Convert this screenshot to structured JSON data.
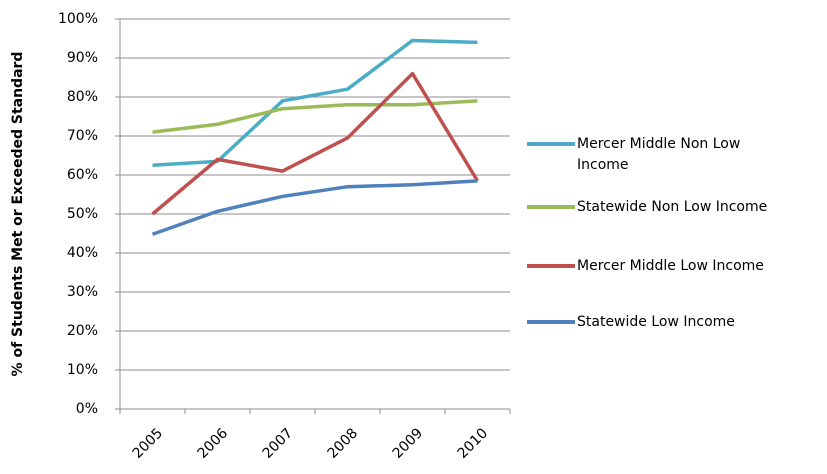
{
  "chart_data": {
    "type": "line",
    "y_label": "% of Students Met or Exceeded Standard",
    "categories": [
      "2005",
      "2006",
      "2007",
      "2008",
      "2009",
      "2010"
    ],
    "series": [
      {
        "name": "Mercer Middle Non Low Income",
        "color": "#4bacc6",
        "values": [
          62.5,
          63.5,
          79,
          82,
          94.5,
          94
        ]
      },
      {
        "name": "Statewide Non Low Income",
        "color": "#9bbb59",
        "values": [
          71,
          73,
          77,
          78,
          78,
          79
        ]
      },
      {
        "name": "Mercer Middle Low Income",
        "color": "#c0504d",
        "values": [
          50,
          64,
          61,
          69.5,
          86,
          58.5
        ]
      },
      {
        "name": "Statewide Low Income",
        "color": "#4f81bd",
        "values": [
          44.8,
          50.7,
          54.5,
          57,
          57.5,
          58.5
        ]
      }
    ],
    "ylim": [
      0,
      100
    ],
    "yticks": [
      {
        "value": 0,
        "label": "0%"
      },
      {
        "value": 10,
        "label": "10%"
      },
      {
        "value": 20,
        "label": "20%"
      },
      {
        "value": 30,
        "label": "30%"
      },
      {
        "value": 40,
        "label": "40%"
      },
      {
        "value": 50,
        "label": "50%"
      },
      {
        "value": 60,
        "label": "60%"
      },
      {
        "value": 70,
        "label": "70%"
      },
      {
        "value": 80,
        "label": "80%"
      },
      {
        "value": 90,
        "label": "90%"
      },
      {
        "value": 100,
        "label": "100%"
      }
    ],
    "grid": true
  }
}
